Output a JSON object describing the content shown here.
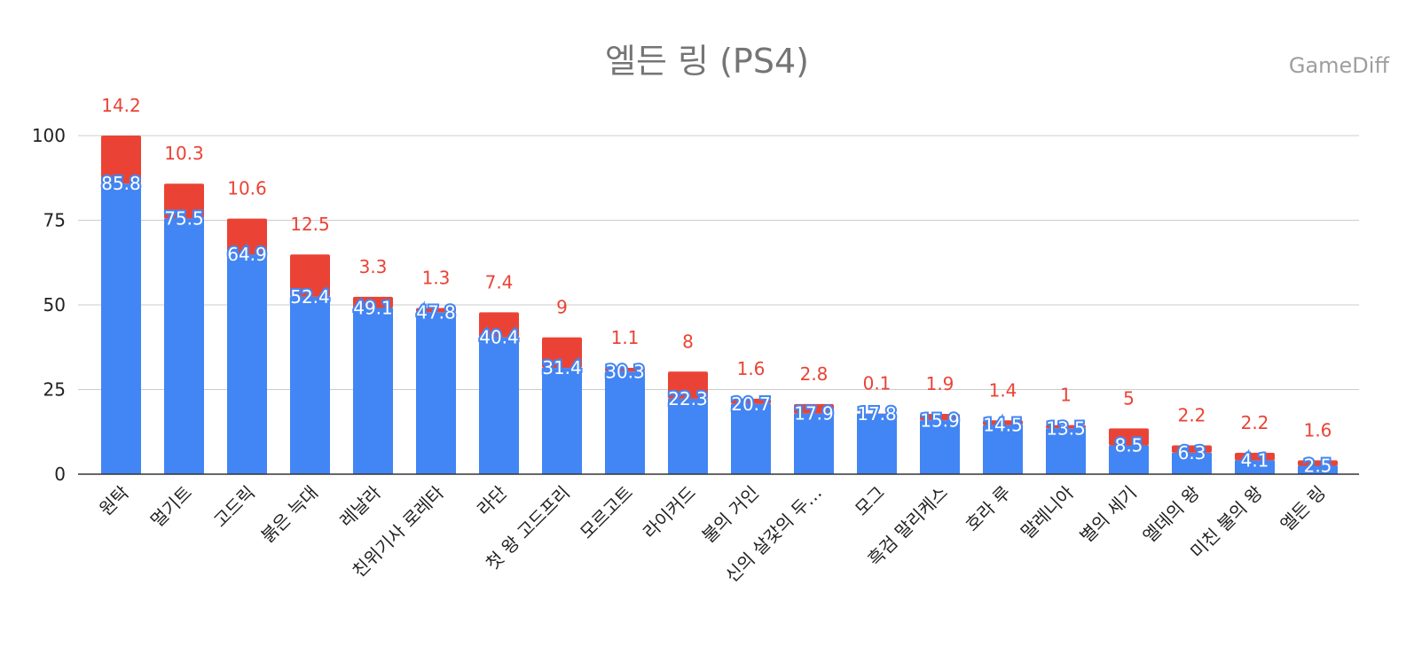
{
  "title": "엘든 링 (PS4)",
  "watermark": "GameDiff",
  "colors": {
    "series1": "#4285f4",
    "series2": "#ea4335",
    "grid": "#cccccc",
    "axis": "#333333"
  },
  "chart_data": {
    "type": "bar",
    "stacked": true,
    "title": "엘든 링 (PS4)",
    "xlabel": "",
    "ylabel": "",
    "ylim": [
      0,
      100
    ],
    "yticks": [
      0,
      25,
      50,
      75,
      100
    ],
    "grid": true,
    "categories": [
      "원탁",
      "멀기트",
      "고드릭",
      "붉은 늑대",
      "레날라",
      "친위기사 로레타",
      "라단",
      "첫 왕 고드프리",
      "모르고트",
      "라이커드",
      "불의 거인",
      "신의 살갗의 두…",
      "모그",
      "흑검 말리케스",
      "호라 루",
      "말레니아",
      "별의 세기",
      "엘데의 왕",
      "미친 불의 왕",
      "엘든 링"
    ],
    "series": [
      {
        "values": [
          85.8,
          75.5,
          64.9,
          52.4,
          49.1,
          47.8,
          40.4,
          31.4,
          30.3,
          22.3,
          20.7,
          17.9,
          17.8,
          15.9,
          14.5,
          13.5,
          8.5,
          6.3,
          4.1,
          2.5
        ]
      },
      {
        "values": [
          14.2,
          10.3,
          10.6,
          12.5,
          3.3,
          1.3,
          7.4,
          9,
          1.1,
          8,
          1.6,
          2.8,
          0.1,
          1.9,
          1.4,
          1,
          5,
          2.2,
          2.2,
          1.6
        ]
      }
    ]
  }
}
